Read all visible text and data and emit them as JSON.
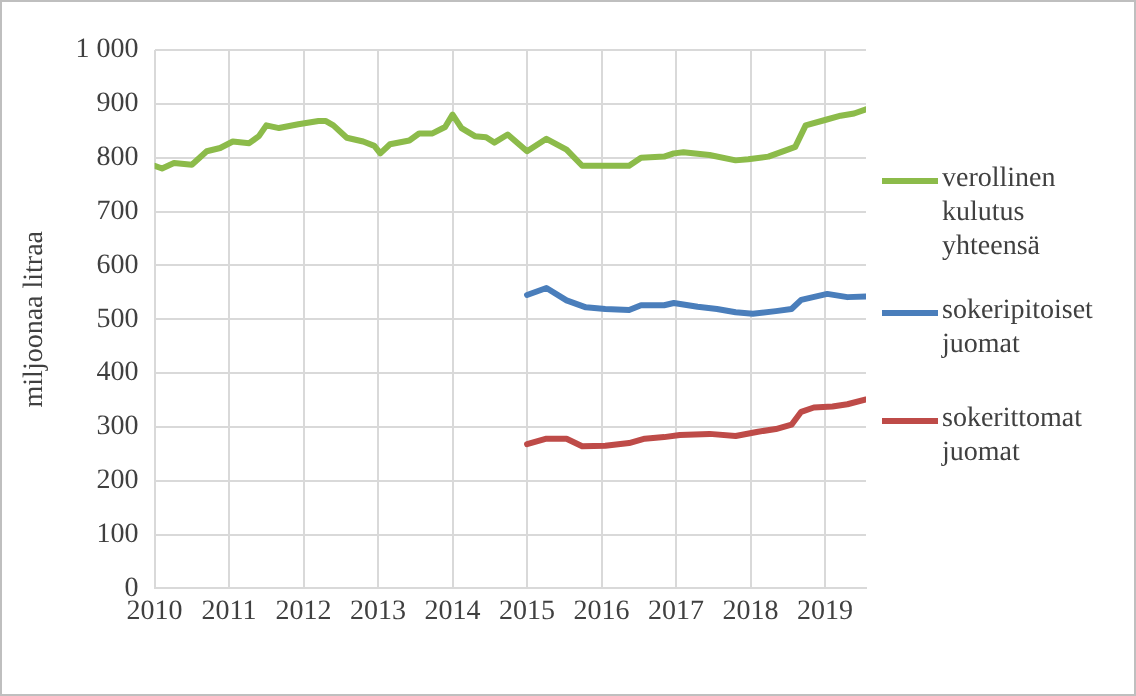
{
  "chart_data": {
    "type": "line",
    "ylabel": "miljoonaa litraa",
    "xlim": [
      2010,
      2019.55
    ],
    "xticks": [
      2010,
      2011,
      2012,
      2013,
      2014,
      2015,
      2016,
      2017,
      2018,
      2019
    ],
    "ylim": [
      0,
      1000
    ],
    "yticks": [
      0,
      100,
      200,
      300,
      400,
      500,
      600,
      700,
      800,
      900,
      {
        "value": 1000,
        "label": "1 000"
      }
    ],
    "grid": true,
    "legend": "right",
    "marker": "none",
    "line_style": "solid",
    "series": [
      {
        "name": "verollinen kulutus yhteensä",
        "color": "#8cbb4a",
        "x": [
          2010.0,
          2010.1,
          2010.26,
          2010.5,
          2010.7,
          2010.88,
          2011.05,
          2011.27,
          2011.4,
          2011.5,
          2011.67,
          2011.93,
          2012.2,
          2012.3,
          2012.4,
          2012.58,
          2012.8,
          2012.95,
          2013.03,
          2013.16,
          2013.42,
          2013.55,
          2013.73,
          2013.9,
          2014.0,
          2014.12,
          2014.3,
          2014.45,
          2014.56,
          2014.74,
          2015.0,
          2015.26,
          2015.53,
          2015.74,
          2016.37,
          2016.53,
          2016.84,
          2016.97,
          2017.1,
          2017.45,
          2017.8,
          2017.97,
          2018.24,
          2018.5,
          2018.6,
          2018.74,
          2019.0,
          2019.21,
          2019.39,
          2019.55
        ],
        "values": [
          785,
          780,
          790,
          787,
          812,
          818,
          830,
          827,
          840,
          860,
          855,
          862,
          868,
          868,
          860,
          837,
          830,
          822,
          808,
          825,
          832,
          845,
          845,
          857,
          880,
          855,
          840,
          838,
          828,
          843,
          812,
          835,
          815,
          785,
          785,
          800,
          802,
          808,
          810,
          805,
          795,
          797,
          802,
          815,
          820,
          860,
          870,
          878,
          882,
          890
        ]
      },
      {
        "name": "sokeripitoiset juomat",
        "color": "#4a7ebb",
        "x": [
          2015.0,
          2015.26,
          2015.53,
          2015.79,
          2016.05,
          2016.37,
          2016.53,
          2016.84,
          2016.97,
          2017.29,
          2017.55,
          2017.8,
          2018.03,
          2018.34,
          2018.55,
          2018.68,
          2019.03,
          2019.3,
          2019.55
        ],
        "values": [
          545,
          558,
          535,
          522,
          519,
          517,
          526,
          526,
          530,
          523,
          519,
          513,
          510,
          515,
          519,
          536,
          547,
          541,
          542
        ]
      },
      {
        "name": "sokerittomat juomat",
        "color": "#be4b48",
        "x": [
          2015.0,
          2015.26,
          2015.53,
          2015.74,
          2016.05,
          2016.37,
          2016.58,
          2016.84,
          2017.05,
          2017.45,
          2017.8,
          2018.1,
          2018.34,
          2018.55,
          2018.68,
          2018.85,
          2019.1,
          2019.3,
          2019.55
        ],
        "values": [
          268,
          278,
          278,
          264,
          265,
          270,
          278,
          281,
          285,
          287,
          283,
          291,
          296,
          304,
          328,
          336,
          338,
          342,
          351
        ]
      }
    ]
  }
}
